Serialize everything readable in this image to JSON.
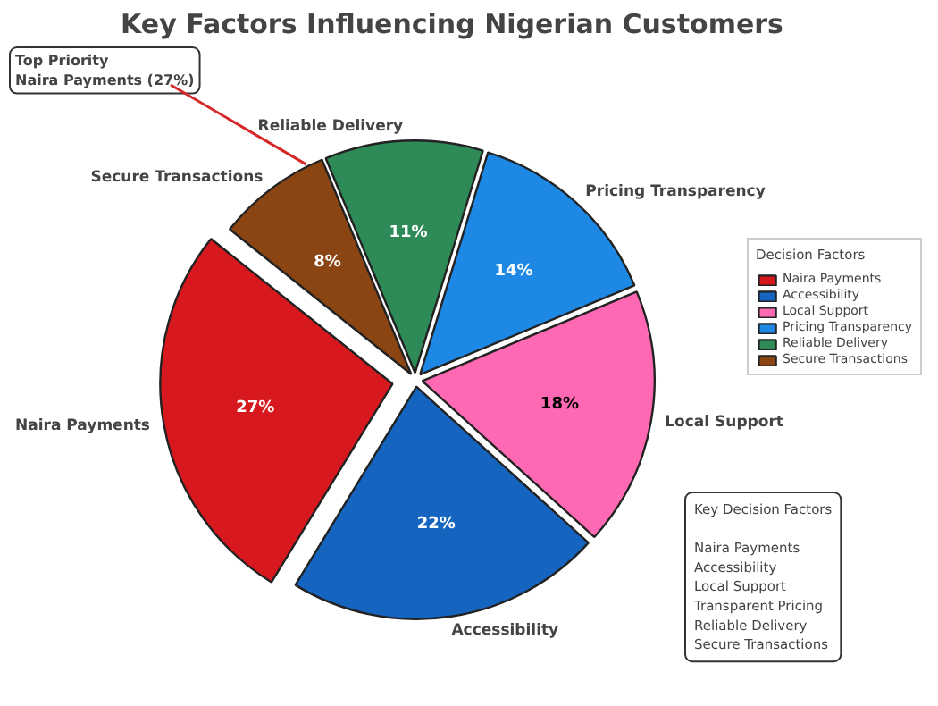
{
  "chart_data": {
    "type": "pie",
    "title": "Key Factors Influencing Nigerian Customers",
    "categories": [
      "Naira Payments",
      "Accessibility",
      "Local Support",
      "Pricing Transparency",
      "Reliable Delivery",
      "Secure Transactions"
    ],
    "values": [
      27,
      22,
      18,
      14,
      11,
      8
    ],
    "colors": [
      "#d7191f",
      "#1565c0",
      "#ff69b4",
      "#1e88e5",
      "#2e8b57",
      "#8b4513"
    ],
    "value_labels": [
      "27%",
      "22%",
      "18%",
      "14%",
      "11%",
      "8%"
    ],
    "legend": "right",
    "legend_title": "Decision Factors",
    "annotations": [
      "Top Priority\nNaira Payments (27%)",
      "Key Decision Factors\n\nNaira Payments\nAccessibility\nLocal Support\nTransparent Pricing\nReliable Delivery\nSecure Transactions"
    ]
  }
}
